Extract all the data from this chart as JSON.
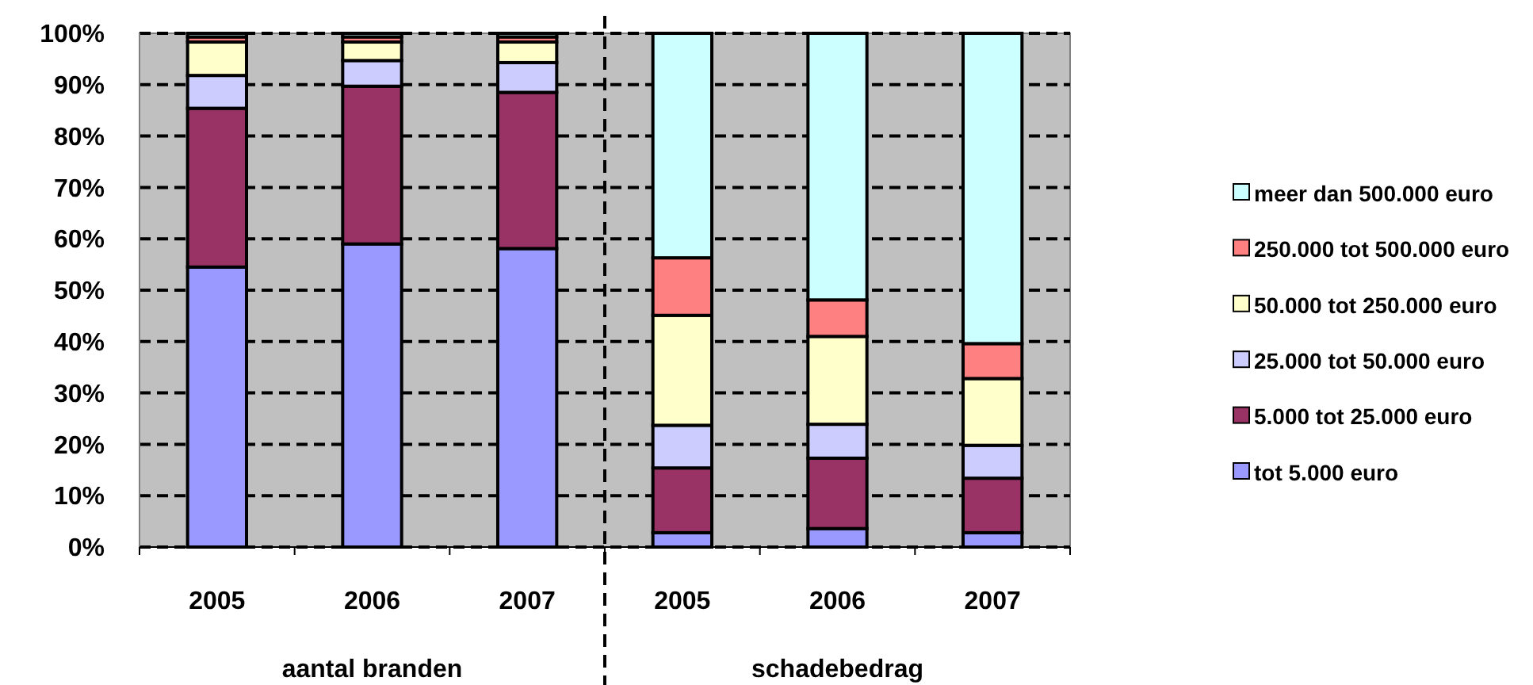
{
  "chart_data": {
    "type": "bar",
    "stacked": true,
    "categories": [
      "2005",
      "2006",
      "2007",
      "2005",
      "2006",
      "2007"
    ],
    "series": [
      {
        "name": "tot 5.000 euro",
        "color": "#9999ff",
        "values": [
          54.5,
          59.0,
          58.1,
          2.8,
          3.6,
          2.8
        ]
      },
      {
        "name": "5.000 tot 25.000 euro",
        "color": "#993366",
        "values": [
          30.9,
          30.7,
          30.4,
          12.6,
          13.7,
          10.6
        ]
      },
      {
        "name": "25.000 tot 50.000 euro",
        "color": "#ccccff",
        "values": [
          6.4,
          5.0,
          5.8,
          8.3,
          6.6,
          6.4
        ]
      },
      {
        "name": "50.000 tot 250.000 euro",
        "color": "#ffffcc",
        "values": [
          6.5,
          3.6,
          4.0,
          21.4,
          17.1,
          13.0
        ]
      },
      {
        "name": "250.000 tot 500.000 euro",
        "color": "#ff8080",
        "values": [
          1.0,
          1.0,
          1.0,
          11.2,
          7.1,
          6.8
        ]
      },
      {
        "name": "meer dan 500.000 euro",
        "color": "#ccffff",
        "values": [
          0.7,
          0.7,
          0.7,
          43.7,
          51.9,
          60.4
        ]
      }
    ],
    "ylim": [
      0,
      100
    ],
    "yticks": [
      {
        "value": 0,
        "label": "0%"
      },
      {
        "value": 10,
        "label": "10%"
      },
      {
        "value": 20,
        "label": "20%"
      },
      {
        "value": 30,
        "label": "30%"
      },
      {
        "value": 40,
        "label": "40%"
      },
      {
        "value": 50,
        "label": "50%"
      },
      {
        "value": 60,
        "label": "60%"
      },
      {
        "value": 70,
        "label": "70%"
      },
      {
        "value": 80,
        "label": "80%"
      },
      {
        "value": 90,
        "label": "90%"
      },
      {
        "value": 100,
        "label": "100%"
      }
    ],
    "grid": "y",
    "legend": "right",
    "annotations": [
      "aantal branden",
      "schadebedrag"
    ]
  }
}
